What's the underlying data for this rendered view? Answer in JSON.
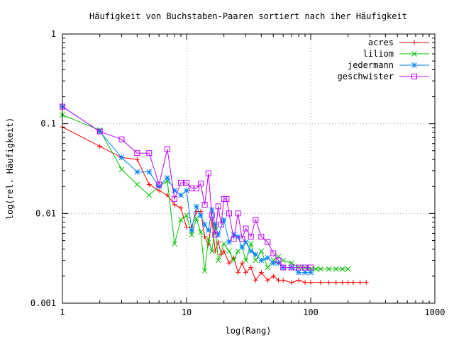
{
  "chart_data": {
    "type": "line",
    "title": "Häufigkeit von Buchstaben-Paaren sortiert nach iher Häufigkeit",
    "xlabel": "log(Rang)",
    "ylabel": "log(rel. Häufigkeit)",
    "x_scale": "log",
    "y_scale": "log",
    "xlim": [
      1,
      1000
    ],
    "ylim": [
      0.001,
      1
    ],
    "x_ticks": [
      "1",
      "10",
      "100",
      "1000"
    ],
    "y_ticks": [
      "0.001",
      "0.01",
      "0.1",
      "1"
    ],
    "grid": true,
    "legend_position": "top-right",
    "series": [
      {
        "name": "acres",
        "color": "#ff0000",
        "marker": "plus",
        "x": [
          1,
          2,
          3,
          4,
          5,
          6,
          7,
          8,
          9,
          10,
          11,
          12,
          13,
          14,
          15,
          16,
          17,
          18,
          19,
          20,
          22,
          24,
          26,
          28,
          30,
          33,
          36,
          40,
          45,
          50,
          55,
          60,
          70,
          80,
          90,
          100,
          120,
          140,
          160,
          180,
          200,
          220,
          250,
          280
        ],
        "y": [
          0.092,
          0.056,
          0.042,
          0.04,
          0.021,
          0.018,
          0.016,
          0.0125,
          0.0115,
          0.007,
          0.007,
          0.0105,
          0.0105,
          0.0055,
          0.0045,
          0.0085,
          0.0038,
          0.0048,
          0.0035,
          0.0038,
          0.0028,
          0.0032,
          0.0022,
          0.0028,
          0.0022,
          0.0025,
          0.0018,
          0.0022,
          0.0018,
          0.002,
          0.0018,
          0.0018,
          0.0017,
          0.0018,
          0.0017,
          0.0017,
          0.0017,
          0.0017,
          0.0017,
          0.0017,
          0.0017,
          0.0017,
          0.0017,
          0.0017
        ]
      },
      {
        "name": "liliom",
        "color": "#00c000",
        "marker": "cross",
        "x": [
          1,
          2,
          3,
          4,
          5,
          6,
          7,
          8,
          9,
          10,
          11,
          12,
          13,
          14,
          15,
          16,
          17,
          18,
          20,
          22,
          24,
          26,
          28,
          30,
          33,
          36,
          40,
          45,
          50,
          55,
          60,
          70,
          80,
          90,
          100,
          110,
          120,
          140,
          160,
          180,
          200
        ],
        "y": [
          0.125,
          0.085,
          0.031,
          0.021,
          0.016,
          0.02,
          0.023,
          0.0046,
          0.0085,
          0.0095,
          0.0058,
          0.0088,
          0.0062,
          0.0023,
          0.0052,
          0.0038,
          0.0072,
          0.003,
          0.0046,
          0.0038,
          0.003,
          0.0038,
          0.0042,
          0.003,
          0.0046,
          0.003,
          0.0038,
          0.0025,
          0.003,
          0.0033,
          0.003,
          0.0028,
          0.0025,
          0.0025,
          0.0024,
          0.0024,
          0.0024,
          0.0024,
          0.0024,
          0.0024,
          0.0024
        ]
      },
      {
        "name": "jedermann",
        "color": "#0080ff",
        "marker": "star",
        "x": [
          1,
          2,
          3,
          4,
          5,
          6,
          7,
          8,
          9,
          10,
          11,
          12,
          13,
          14,
          15,
          16,
          17,
          18,
          20,
          22,
          24,
          26,
          28,
          30,
          33,
          36,
          40,
          45,
          50,
          55,
          60,
          70,
          80,
          90,
          100
        ],
        "y": [
          0.155,
          0.082,
          0.042,
          0.029,
          0.029,
          0.02,
          0.025,
          0.018,
          0.016,
          0.018,
          0.0065,
          0.012,
          0.0095,
          0.0075,
          0.0065,
          0.011,
          0.0075,
          0.0058,
          0.0085,
          0.0048,
          0.0058,
          0.0055,
          0.0042,
          0.0048,
          0.0038,
          0.0035,
          0.003,
          0.0032,
          0.0028,
          0.0028,
          0.0025,
          0.0025,
          0.0022,
          0.0022,
          0.0022
        ]
      },
      {
        "name": "geschwister",
        "color": "#c000ff",
        "marker": "box",
        "x": [
          1,
          2,
          3,
          4,
          5,
          6,
          7,
          8,
          9,
          10,
          11,
          12,
          13,
          14,
          15,
          16,
          17,
          18,
          19,
          20,
          21,
          22,
          24,
          26,
          28,
          30,
          33,
          36,
          40,
          45,
          50,
          55,
          60,
          70,
          80,
          90,
          100
        ],
        "y": [
          0.155,
          0.082,
          0.067,
          0.047,
          0.047,
          0.021,
          0.052,
          0.0145,
          0.022,
          0.022,
          0.019,
          0.019,
          0.0215,
          0.0125,
          0.028,
          0.0095,
          0.0058,
          0.012,
          0.0075,
          0.0145,
          0.0145,
          0.01,
          0.0052,
          0.01,
          0.0052,
          0.0068,
          0.0055,
          0.0085,
          0.0055,
          0.0048,
          0.0036,
          0.003,
          0.0025,
          0.0025,
          0.0025,
          0.0025,
          0.0025
        ]
      }
    ]
  }
}
